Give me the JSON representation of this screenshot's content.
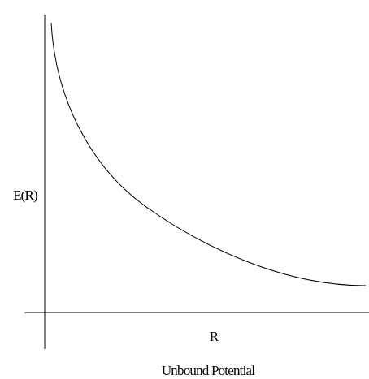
{
  "diagram": {
    "y_label": "E(R)",
    "x_label": "R",
    "caption": "Unbound Potential"
  }
}
